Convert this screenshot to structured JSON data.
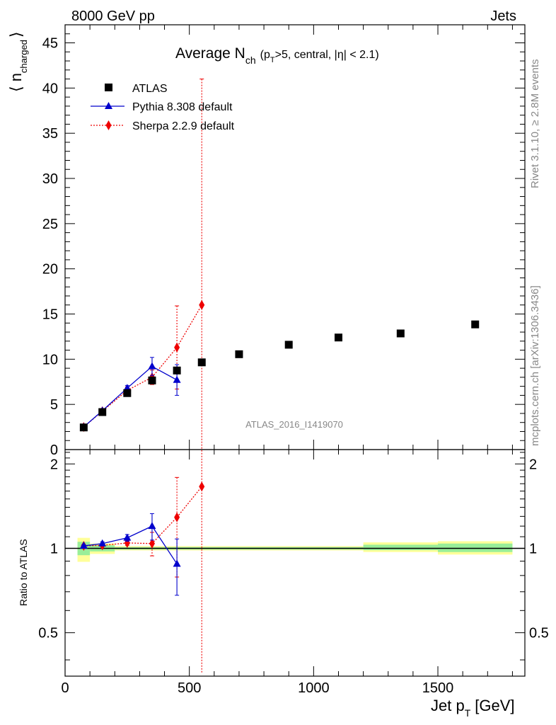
{
  "header": {
    "left": "8000 GeV pp",
    "right": "Jets"
  },
  "side": {
    "rivet": "Rivet 3.1.10, ≥ 2.8M events",
    "mcplots": "mcplots.cern.ch [arXiv:1306.3436]"
  },
  "plot": {
    "title_main": "Average N",
    "title_sub": "ch",
    "title_rest": "(p",
    "title_rest_sub": "T",
    "title_rest2": ">5, central, |η| < 2.1)",
    "ylabel_main_open": "⟨ n",
    "ylabel_main_sub": "charged",
    "ylabel_main_close": "⟩",
    "ylabel_ratio": "Ratio to ATLAS",
    "xlabel": "Jet p",
    "xlabel_sub": "T",
    "xlabel_unit": "[GeV]",
    "watermark": "ATLAS_2016_I1419070"
  },
  "legend": [
    {
      "label": "ATLAS",
      "color": "#000000",
      "marker": "square"
    },
    {
      "label": "Pythia 8.308 default",
      "color": "#0000cc",
      "marker": "triangle"
    },
    {
      "label": "Sherpa 2.2.9 default",
      "color": "#ee0000",
      "marker": "diamond"
    }
  ],
  "chart_data": [
    {
      "type": "scatter",
      "panel": "main",
      "xlim": [
        0,
        1850
      ],
      "ylim": [
        0,
        47
      ],
      "yticks": [
        0,
        5,
        10,
        15,
        20,
        25,
        30,
        35,
        40,
        45
      ],
      "series": [
        {
          "name": "ATLAS",
          "x": [
            75,
            150,
            250,
            350,
            450,
            550,
            700,
            900,
            1100,
            1350,
            1650
          ],
          "y": [
            2.45,
            4.15,
            6.25,
            7.65,
            8.75,
            9.65,
            10.55,
            11.6,
            12.4,
            12.85,
            13.85
          ]
        },
        {
          "name": "Pythia 8.308 default",
          "x": [
            75,
            150,
            250,
            350,
            450
          ],
          "y": [
            2.5,
            4.3,
            6.8,
            9.2,
            7.7
          ],
          "err": [
            0.1,
            0.15,
            0.3,
            1.0,
            1.7
          ]
        },
        {
          "name": "Sherpa 2.2.9 default",
          "x": [
            75,
            150,
            250,
            350,
            450,
            550
          ],
          "y": [
            2.5,
            4.25,
            6.55,
            8.0,
            11.3,
            16.0
          ],
          "err": [
            0.1,
            0.2,
            0.4,
            0.8,
            4.6,
            25.0
          ]
        }
      ]
    },
    {
      "type": "scatter",
      "panel": "ratio",
      "xlim": [
        0,
        1850
      ],
      "ylim": [
        0.35,
        2.25
      ],
      "yticks": [
        0.5,
        1,
        2
      ],
      "bands": [
        {
          "x0": 50,
          "x1": 100,
          "y_lo": 0.895,
          "y_hi": 1.09,
          "g_lo": 0.945,
          "g_hi": 1.055
        },
        {
          "x0": 100,
          "x1": 200,
          "y_lo": 0.955,
          "y_hi": 1.04,
          "g_lo": 0.975,
          "g_hi": 1.025
        },
        {
          "x0": 200,
          "x1": 1200,
          "y_lo": 0.983,
          "y_hi": 1.018,
          "g_lo": 0.99,
          "g_hi": 1.01
        },
        {
          "x0": 1200,
          "x1": 1500,
          "y_lo": 0.97,
          "y_hi": 1.05,
          "g_lo": 0.985,
          "g_hi": 1.03
        },
        {
          "x0": 1500,
          "x1": 1800,
          "y_lo": 0.95,
          "y_hi": 1.06,
          "g_lo": 0.97,
          "g_hi": 1.04
        }
      ],
      "series": [
        {
          "name": "Pythia 8.308 default",
          "x": [
            75,
            150,
            250,
            350,
            450
          ],
          "y": [
            1.02,
            1.04,
            1.09,
            1.2,
            0.88
          ],
          "err": [
            0.01,
            0.015,
            0.03,
            0.13,
            0.2
          ]
        },
        {
          "name": "Sherpa 2.2.9 default",
          "x": [
            75,
            150,
            250,
            350,
            450,
            550
          ],
          "y": [
            1.02,
            1.025,
            1.045,
            1.04,
            1.29,
            1.66
          ],
          "err": [
            0.01,
            0.01,
            0.02,
            0.1,
            0.5,
            2.0
          ]
        }
      ]
    }
  ]
}
